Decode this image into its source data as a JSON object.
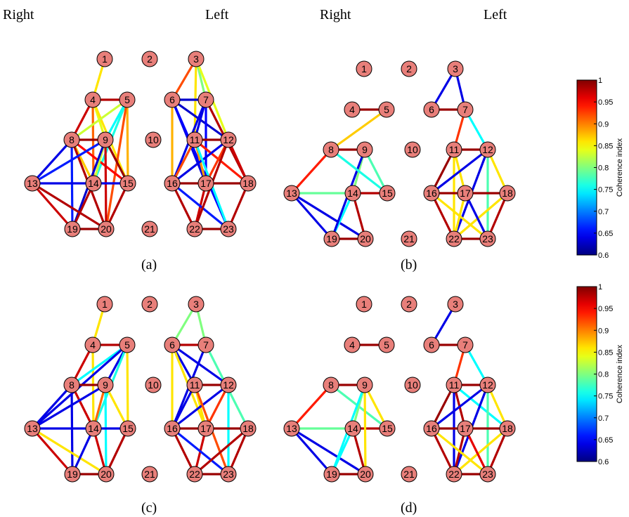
{
  "headers": {
    "right_a": "Right",
    "left_a": "Left",
    "right_b": "Right",
    "left_b": "Left"
  },
  "nodes": [
    {
      "id": 1,
      "label": "1"
    },
    {
      "id": 2,
      "label": "2"
    },
    {
      "id": 3,
      "label": "3"
    },
    {
      "id": 4,
      "label": "4"
    },
    {
      "id": 5,
      "label": "5"
    },
    {
      "id": 6,
      "label": "6"
    },
    {
      "id": 7,
      "label": "7"
    },
    {
      "id": 8,
      "label": "8"
    },
    {
      "id": 9,
      "label": "9"
    },
    {
      "id": 10,
      "label": "10"
    },
    {
      "id": 11,
      "label": "11"
    },
    {
      "id": 12,
      "label": "12"
    },
    {
      "id": 13,
      "label": "13"
    },
    {
      "id": 14,
      "label": "14"
    },
    {
      "id": 15,
      "label": "15"
    },
    {
      "id": 16,
      "label": "16"
    },
    {
      "id": 17,
      "label": "17"
    },
    {
      "id": 18,
      "label": "18"
    },
    {
      "id": 19,
      "label": "19"
    },
    {
      "id": 20,
      "label": "20"
    },
    {
      "id": 21,
      "label": "21"
    },
    {
      "id": 22,
      "label": "22"
    },
    {
      "id": 23,
      "label": "23"
    }
  ],
  "node_color": "#e87f7a",
  "panels": [
    {
      "key": "a",
      "caption": "(a)",
      "edges": [
        [
          1,
          4,
          0.86
        ],
        [
          4,
          5,
          0.98
        ],
        [
          4,
          8,
          0.97
        ],
        [
          4,
          9,
          0.84
        ],
        [
          4,
          14,
          0.91
        ],
        [
          4,
          15,
          0.86
        ],
        [
          5,
          8,
          0.83
        ],
        [
          5,
          9,
          0.75
        ],
        [
          5,
          14,
          0.76
        ],
        [
          5,
          15,
          0.88
        ],
        [
          5,
          20,
          0.92
        ],
        [
          8,
          9,
          0.99
        ],
        [
          8,
          13,
          0.64
        ],
        [
          8,
          14,
          0.87
        ],
        [
          8,
          15,
          0.95
        ],
        [
          8,
          19,
          0.66
        ],
        [
          8,
          20,
          0.98
        ],
        [
          9,
          13,
          0.66
        ],
        [
          9,
          14,
          0.83
        ],
        [
          9,
          15,
          0.99
        ],
        [
          9,
          19,
          0.63
        ],
        [
          9,
          20,
          0.97
        ],
        [
          13,
          14,
          0.64
        ],
        [
          14,
          15,
          0.64
        ],
        [
          13,
          19,
          0.97
        ],
        [
          13,
          20,
          0.98
        ],
        [
          14,
          19,
          0.98
        ],
        [
          15,
          20,
          0.98
        ],
        [
          19,
          20,
          0.99
        ],
        [
          3,
          6,
          0.92
        ],
        [
          3,
          7,
          0.8
        ],
        [
          3,
          11,
          0.86
        ],
        [
          3,
          12,
          0.84
        ],
        [
          6,
          7,
          0.63
        ],
        [
          6,
          12,
          0.63
        ],
        [
          6,
          16,
          0.88
        ],
        [
          6,
          17,
          0.64
        ],
        [
          6,
          23,
          0.65
        ],
        [
          7,
          11,
          0.64
        ],
        [
          7,
          16,
          0.64
        ],
        [
          7,
          17,
          0.65
        ],
        [
          7,
          18,
          0.98
        ],
        [
          11,
          12,
          0.99
        ],
        [
          11,
          16,
          0.92
        ],
        [
          11,
          17,
          0.89
        ],
        [
          11,
          18,
          0.94
        ],
        [
          12,
          16,
          0.64
        ],
        [
          12,
          17,
          0.93
        ],
        [
          12,
          18,
          0.97
        ],
        [
          16,
          17,
          0.99
        ],
        [
          17,
          18,
          0.99
        ],
        [
          16,
          22,
          0.98
        ],
        [
          17,
          22,
          0.97
        ],
        [
          18,
          23,
          0.98
        ],
        [
          22,
          23,
          0.99
        ],
        [
          11,
          23,
          0.75
        ],
        [
          16,
          23,
          0.66
        ],
        [
          12,
          22,
          0.98
        ]
      ]
    },
    {
      "key": "b",
      "caption": "(b)",
      "edges": [
        [
          3,
          6,
          0.64
        ],
        [
          3,
          7,
          0.64
        ],
        [
          6,
          7,
          0.99
        ],
        [
          4,
          5,
          0.99
        ],
        [
          5,
          8,
          0.87
        ],
        [
          8,
          9,
          0.99
        ],
        [
          8,
          13,
          0.94
        ],
        [
          9,
          14,
          0.8
        ],
        [
          9,
          15,
          0.78
        ],
        [
          13,
          14,
          0.79
        ],
        [
          14,
          15,
          0.98
        ],
        [
          13,
          19,
          0.64
        ],
        [
          13,
          20,
          0.64
        ],
        [
          14,
          19,
          0.75
        ],
        [
          9,
          19,
          0.64
        ],
        [
          19,
          20,
          0.99
        ],
        [
          14,
          20,
          0.98
        ],
        [
          8,
          15,
          0.76
        ],
        [
          7,
          11,
          0.93
        ],
        [
          7,
          12,
          0.75
        ],
        [
          11,
          12,
          0.99
        ],
        [
          11,
          16,
          0.99
        ],
        [
          11,
          17,
          0.86
        ],
        [
          11,
          22,
          0.86
        ],
        [
          12,
          16,
          0.64
        ],
        [
          12,
          18,
          0.86
        ],
        [
          12,
          22,
          0.64
        ],
        [
          12,
          23,
          0.78
        ],
        [
          16,
          17,
          0.99
        ],
        [
          17,
          18,
          0.99
        ],
        [
          16,
          22,
          0.98
        ],
        [
          17,
          22,
          0.86
        ],
        [
          18,
          23,
          0.98
        ],
        [
          22,
          23,
          0.99
        ],
        [
          16,
          23,
          0.86
        ],
        [
          18,
          22,
          0.86
        ],
        [
          17,
          23,
          0.64
        ]
      ]
    },
    {
      "key": "c",
      "caption": "(c)",
      "edges": [
        [
          1,
          4,
          0.86
        ],
        [
          4,
          5,
          0.98
        ],
        [
          4,
          8,
          0.97
        ],
        [
          4,
          14,
          0.86
        ],
        [
          5,
          8,
          0.75
        ],
        [
          5,
          9,
          0.64
        ],
        [
          5,
          13,
          0.64
        ],
        [
          5,
          14,
          0.76
        ],
        [
          5,
          15,
          0.86
        ],
        [
          8,
          9,
          0.99
        ],
        [
          8,
          13,
          0.64
        ],
        [
          8,
          14,
          0.97
        ],
        [
          8,
          19,
          0.64
        ],
        [
          9,
          13,
          0.64
        ],
        [
          9,
          15,
          0.86
        ],
        [
          9,
          20,
          0.75
        ],
        [
          9,
          14,
          0.91
        ],
        [
          13,
          14,
          0.64
        ],
        [
          14,
          15,
          0.64
        ],
        [
          13,
          19,
          0.97
        ],
        [
          13,
          20,
          0.86
        ],
        [
          14,
          19,
          0.64
        ],
        [
          15,
          20,
          0.98
        ],
        [
          19,
          20,
          0.99
        ],
        [
          14,
          20,
          0.97
        ],
        [
          3,
          6,
          0.8
        ],
        [
          3,
          7,
          0.8
        ],
        [
          6,
          7,
          0.98
        ],
        [
          6,
          11,
          0.64
        ],
        [
          6,
          12,
          0.64
        ],
        [
          6,
          16,
          0.86
        ],
        [
          6,
          17,
          0.86
        ],
        [
          7,
          16,
          0.64
        ],
        [
          7,
          18,
          0.78
        ],
        [
          11,
          12,
          0.99
        ],
        [
          11,
          16,
          0.64
        ],
        [
          11,
          17,
          0.86
        ],
        [
          12,
          16,
          0.64
        ],
        [
          12,
          17,
          0.93
        ],
        [
          12,
          23,
          0.75
        ],
        [
          16,
          17,
          0.99
        ],
        [
          17,
          18,
          0.99
        ],
        [
          16,
          22,
          0.98
        ],
        [
          17,
          22,
          0.97
        ],
        [
          18,
          23,
          0.98
        ],
        [
          22,
          23,
          0.99
        ],
        [
          16,
          23,
          0.66
        ],
        [
          11,
          23,
          0.92
        ],
        [
          18,
          22,
          0.98
        ]
      ]
    },
    {
      "key": "d",
      "caption": "(d)",
      "edges": [
        [
          3,
          6,
          0.64
        ],
        [
          6,
          7,
          0.99
        ],
        [
          4,
          5,
          0.99
        ],
        [
          8,
          9,
          0.99
        ],
        [
          8,
          13,
          0.94
        ],
        [
          8,
          15,
          0.78
        ],
        [
          9,
          14,
          0.8
        ],
        [
          9,
          15,
          0.86
        ],
        [
          13,
          14,
          0.79
        ],
        [
          14,
          15,
          0.98
        ],
        [
          13,
          19,
          0.64
        ],
        [
          13,
          20,
          0.64
        ],
        [
          14,
          19,
          0.75
        ],
        [
          9,
          19,
          0.75
        ],
        [
          19,
          20,
          0.99
        ],
        [
          14,
          20,
          0.98
        ],
        [
          9,
          20,
          0.86
        ],
        [
          7,
          11,
          0.93
        ],
        [
          7,
          12,
          0.75
        ],
        [
          11,
          12,
          0.99
        ],
        [
          11,
          16,
          0.99
        ],
        [
          11,
          17,
          0.98
        ],
        [
          11,
          22,
          0.64
        ],
        [
          11,
          18,
          0.75
        ],
        [
          12,
          16,
          0.64
        ],
        [
          12,
          18,
          0.86
        ],
        [
          12,
          22,
          0.64
        ],
        [
          12,
          23,
          0.78
        ],
        [
          16,
          17,
          0.99
        ],
        [
          17,
          18,
          0.99
        ],
        [
          16,
          22,
          0.98
        ],
        [
          17,
          22,
          0.98
        ],
        [
          18,
          23,
          0.98
        ],
        [
          22,
          23,
          0.99
        ],
        [
          16,
          23,
          0.86
        ],
        [
          18,
          22,
          0.86
        ],
        [
          17,
          23,
          0.96
        ]
      ]
    }
  ],
  "colorbars": [
    {
      "key": "top",
      "ticks": [
        "1",
        "0.95",
        "0.9",
        "0.85",
        "0.8",
        "0.75",
        "0.7",
        "0.65",
        "0.6"
      ],
      "title": "Coherence index"
    },
    {
      "key": "bottom",
      "ticks": [
        "1",
        "0.95",
        "0.9",
        "0.85",
        "0.8",
        "0.75",
        "0.7",
        "0.65",
        "0.6"
      ],
      "title": "Coherence index"
    }
  ],
  "colorscale": {
    "min": 0.6,
    "max": 1.0,
    "name": "jet"
  }
}
